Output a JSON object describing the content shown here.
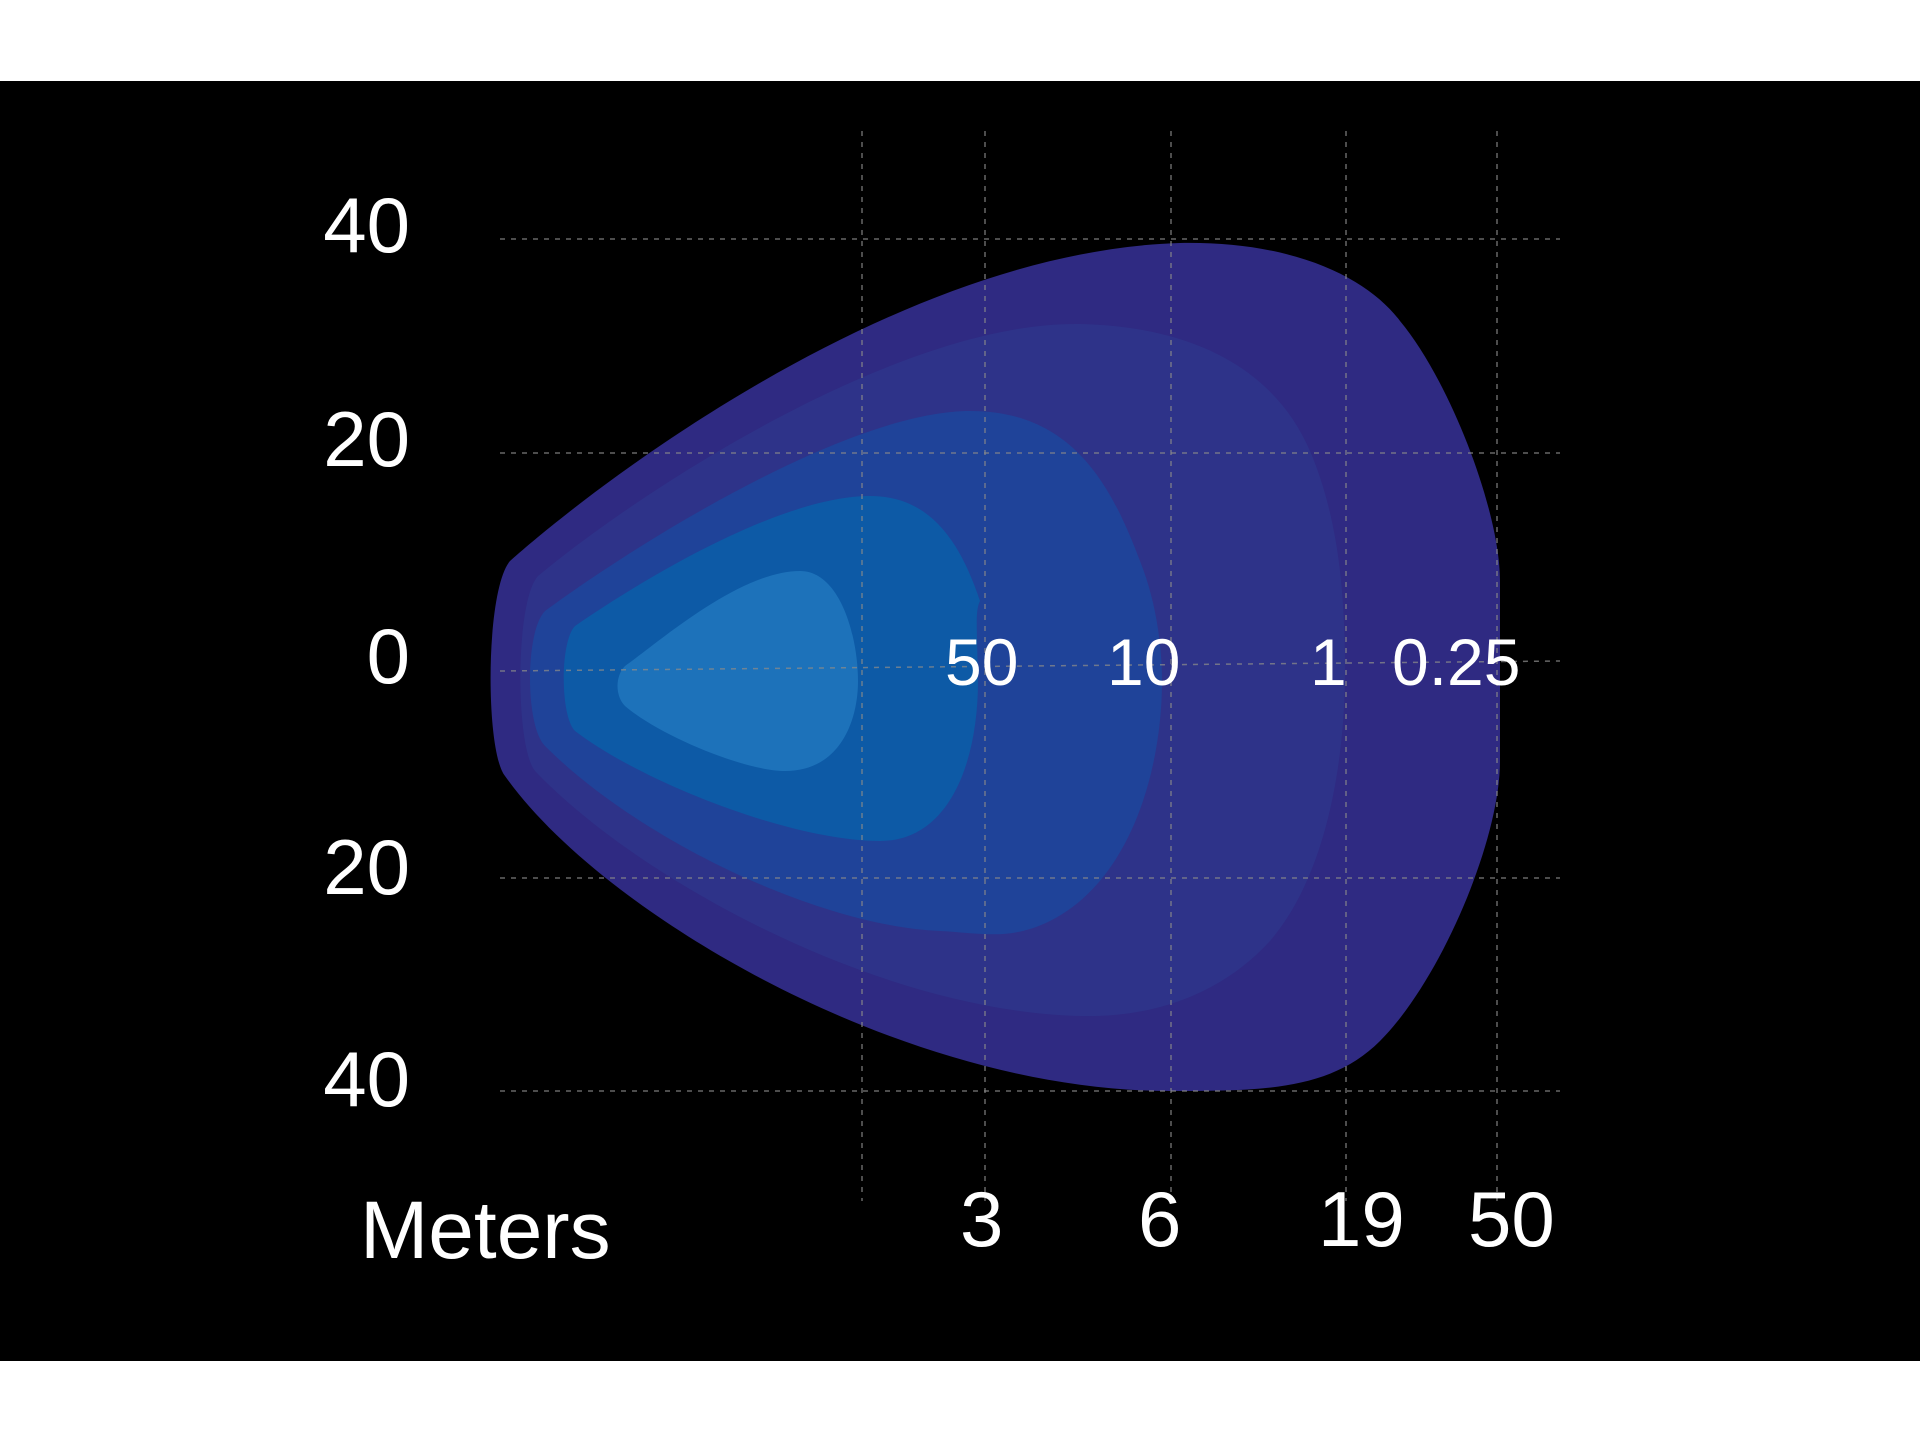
{
  "chart_data": {
    "type": "contour",
    "title": "",
    "y_ticks": [
      "40",
      "20",
      "0",
      "20",
      "40"
    ],
    "x_ticks": [
      "3",
      "6",
      "19",
      "50"
    ],
    "unit_label": "Meters",
    "zones": [
      {
        "value": "0.25",
        "color": "#2f2a82"
      },
      {
        "value": "1",
        "color": "#2e3389"
      },
      {
        "value": "10",
        "color": "#1f4399"
      },
      {
        "value": "50",
        "color": "#0d5aa6"
      },
      {
        "value": "",
        "color": "#1d72ba"
      }
    ],
    "grid": true
  }
}
